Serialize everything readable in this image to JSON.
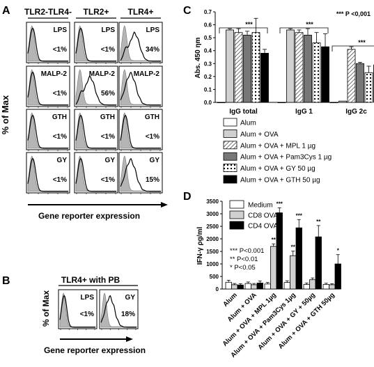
{
  "panel_letters": [
    "A",
    "B",
    "C",
    "D"
  ],
  "panelA": {
    "column_headers": [
      "TLR2-TLR4-",
      "TLR2+",
      "TLR4+"
    ],
    "ylabel": "% of Max",
    "xlabel": "Gene reporter expression",
    "rows": [
      {
        "stimulus": "LPS",
        "percents": [
          "<1%",
          "<1%",
          "34%"
        ]
      },
      {
        "stimulus": "MALP-2",
        "percents": [
          "<1%",
          "56%",
          ""
        ]
      },
      {
        "stimulus": "GTH",
        "percents": [
          "<1%",
          "<1%",
          "<1%"
        ]
      },
      {
        "stimulus": "GY",
        "percents": [
          "<1%",
          "<1%",
          "15%"
        ]
      }
    ]
  },
  "panelB": {
    "title": "TLR4+ with PB",
    "ylabel": "% of Max",
    "xlabel": "Gene reporter expression",
    "cells": [
      {
        "stimulus": "LPS",
        "percent": "<1%"
      },
      {
        "stimulus": "GY",
        "percent": "18%"
      }
    ]
  },
  "chart_data": [
    {
      "type": "bar",
      "panel": "C",
      "ylabel": "Abs. 450 ηm",
      "ylim": [
        0,
        0.7
      ],
      "yticks": [
        "0.0",
        "0.1",
        "0.2",
        "0.3",
        "0.4",
        "0.5",
        "0.6",
        "0.7"
      ],
      "categories": [
        "IgG total",
        "IgG 1",
        "IgG 2c"
      ],
      "series": [
        {
          "name": "Alum",
          "values": [
            0.0,
            0.0,
            0.0
          ],
          "errors": [
            0,
            0,
            0
          ],
          "fill": "#ffffff"
        },
        {
          "name": "Alum + OVA",
          "values": [
            0.56,
            0.56,
            0.01
          ],
          "errors": [
            0.01,
            0.01,
            0
          ],
          "fill": "#d0d0d0"
        },
        {
          "name": "Alum + OVA + MPL 1 µg",
          "values": [
            0.54,
            0.54,
            0.41
          ],
          "errors": [
            0.03,
            0.02,
            0.02
          ],
          "fill": "hatch"
        },
        {
          "name": "Alum + OVA + Pam3Cys 1 µg",
          "values": [
            0.52,
            0.52,
            0.3
          ],
          "errors": [
            0.03,
            0.05,
            0.01
          ],
          "fill": "#777777"
        },
        {
          "name": "Alum + OVA + GY 50 µg",
          "values": [
            0.54,
            0.46,
            0.23
          ],
          "errors": [
            0.11,
            0.08,
            0.05
          ],
          "fill": "dots"
        },
        {
          "name": "Alum + OVA + GTH 50 µg",
          "values": [
            0.38,
            0.43,
            0.29
          ],
          "errors": [
            0.03,
            0.1,
            0.07
          ],
          "fill": "#000000"
        }
      ],
      "significance": "***",
      "annotation": "*** P <0,001"
    },
    {
      "type": "bar",
      "panel": "D",
      "ylabel": "IFN-γ ρg/ml",
      "ylim": [
        0,
        3500
      ],
      "yticks": [
        "0",
        "500",
        "1000",
        "1500",
        "2000",
        "2500",
        "3000",
        "3500"
      ],
      "categories": [
        "Alum",
        "Alum + OVA",
        "Alum + OVA + MPL 1µg",
        "Alum + OVA + Pam3Cys 1µg",
        "Alum + OVA + GY + 50µg",
        "Alum + OVA + GTH 50µg"
      ],
      "series": [
        {
          "name": "Medium",
          "values": [
            270,
            220,
            200,
            260,
            180,
            180
          ],
          "errors": [
            80,
            60,
            60,
            70,
            60,
            50
          ],
          "fill": "#ffffff"
        },
        {
          "name": "CD8 OVA",
          "values": [
            170,
            170,
            1700,
            1330,
            370,
            170
          ],
          "errors": [
            50,
            50,
            100,
            180,
            70,
            40
          ],
          "fill": "#d0d0d0"
        },
        {
          "name": "CD4 OVA",
          "values": [
            160,
            240,
            3040,
            2440,
            2080,
            1000
          ],
          "errors": [
            50,
            80,
            200,
            330,
            450,
            370
          ],
          "fill": "#000000"
        }
      ],
      "stars": [
        "",
        "",
        "** ***",
        "** ***",
        "**",
        "*"
      ],
      "pvalue_legend": [
        "*** P<0.001",
        "** P<0.01",
        "* P<0.05"
      ]
    }
  ]
}
